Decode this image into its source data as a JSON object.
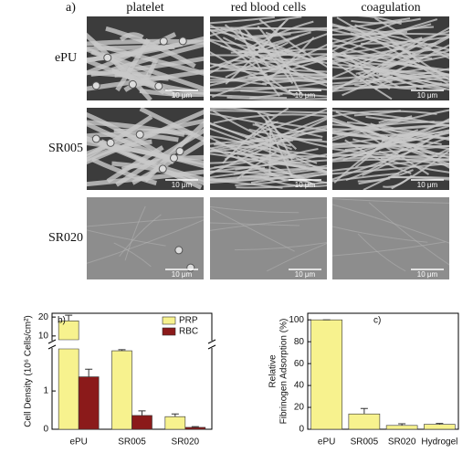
{
  "figure_a": {
    "label": "a)",
    "columns": [
      "platelet",
      "red blood cells",
      "coagulation"
    ],
    "rows": [
      "ePU",
      "SR005",
      "SR020"
    ],
    "scale_bar": "10 μm"
  },
  "chart_data": [
    {
      "type": "bar",
      "panel": "b)",
      "y_label": "Cell Density (10⁶ Cells/cm²)",
      "categories": [
        "ePU",
        "SR005",
        "SR020"
      ],
      "series": [
        {
          "name": "PRP",
          "color": "#f7f28e",
          "values": [
            18,
            2.05,
            0.33
          ],
          "errors": [
            3,
            0.03,
            0.07
          ]
        },
        {
          "name": "RBC",
          "color": "#8b1a1a",
          "values": [
            1.37,
            0.36,
            0.05
          ],
          "errors": [
            0.2,
            0.12,
            0.02
          ]
        }
      ],
      "segments": [
        {
          "ylim": [
            0,
            2.1
          ],
          "yticks": [
            0,
            1
          ]
        },
        {
          "ylim": [
            8,
            22
          ],
          "yticks": [
            10,
            20
          ]
        }
      ],
      "legend": "top-right"
    },
    {
      "type": "bar",
      "panel": "c)",
      "y_label": [
        "Relative",
        "Fibrinogen Adsorption (%)"
      ],
      "categories": [
        "ePU",
        "SR005",
        "SR020",
        "Hydrogel"
      ],
      "series": [
        {
          "name": null,
          "color": "#f7f28e",
          "values": [
            100,
            14,
            3.5,
            4.5
          ],
          "errors": [
            0,
            5,
            1.5,
            0.8
          ]
        }
      ],
      "ylim": [
        0,
        106
      ],
      "yticks": [
        0,
        20,
        40,
        60,
        80,
        100
      ]
    }
  ]
}
